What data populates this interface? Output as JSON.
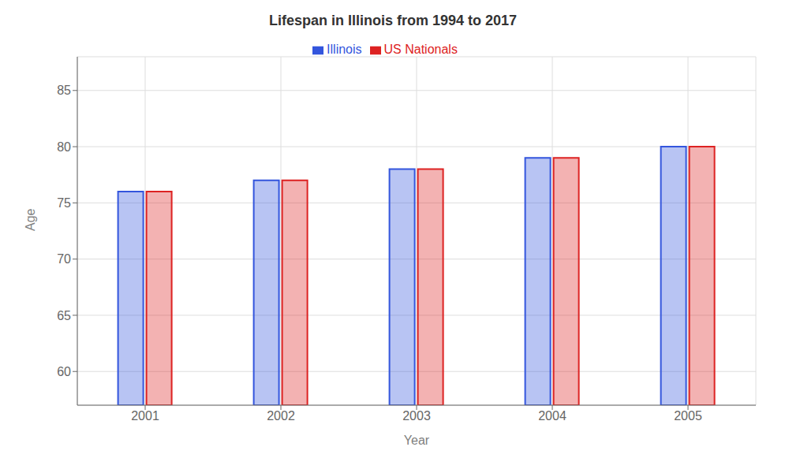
{
  "chart_data": {
    "type": "bar",
    "title": "Lifespan in Illinois from 1994 to 2017",
    "xlabel": "Year",
    "ylabel": "Age",
    "categories": [
      "2001",
      "2002",
      "2003",
      "2004",
      "2005"
    ],
    "series": [
      {
        "name": "Illinois",
        "color": "#3355dd",
        "values": [
          76,
          77,
          78,
          79,
          80
        ]
      },
      {
        "name": "US Nationals",
        "color": "#dd2222",
        "values": [
          76,
          77,
          78,
          79,
          80
        ]
      }
    ],
    "ylim": [
      57,
      88
    ],
    "yticks": [
      60,
      65,
      70,
      75,
      80,
      85
    ],
    "grid": true,
    "legend": "top"
  }
}
